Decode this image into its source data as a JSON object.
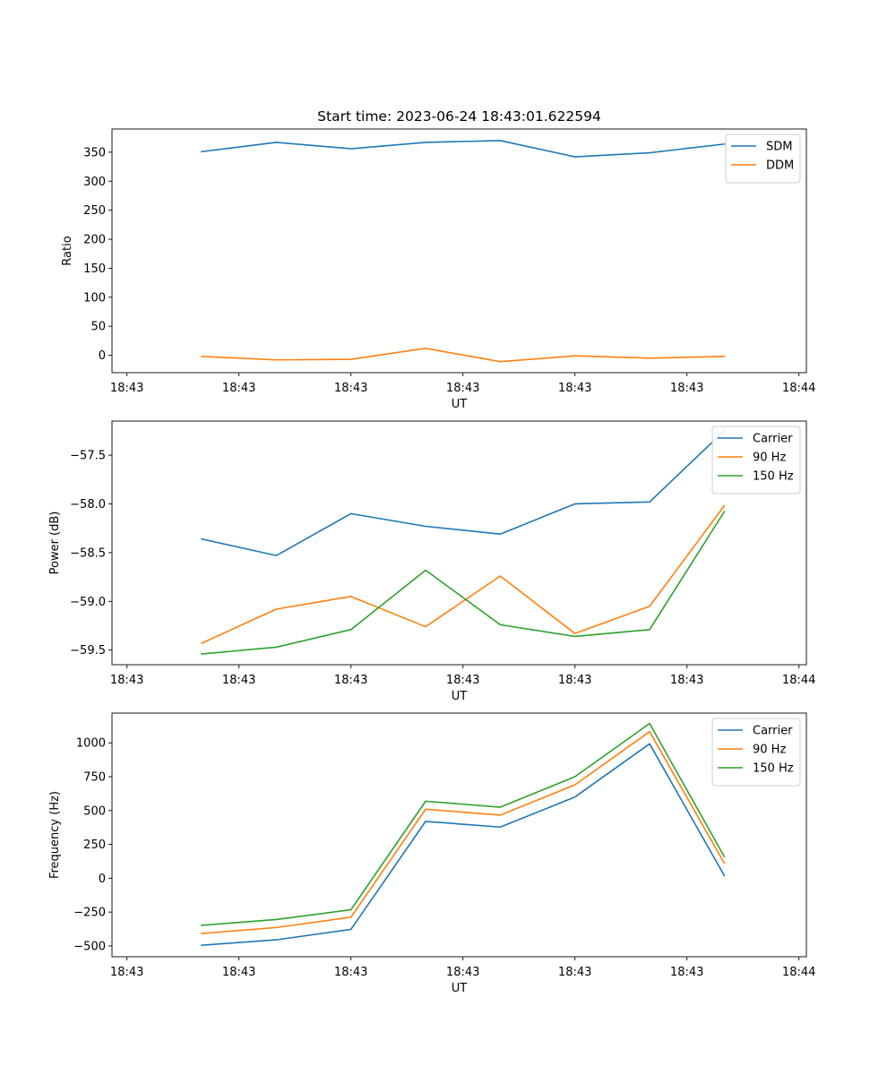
{
  "chart_data": [
    {
      "type": "line",
      "title": "Start time: 2023-06-24 18:43:01.622594",
      "xlabel": "UT",
      "ylabel": "Ratio",
      "x_tick_labels": [
        "18:43",
        "18:43",
        "18:43",
        "18:43",
        "18:43",
        "18:43",
        "18:44"
      ],
      "x": [
        1,
        2,
        3,
        4,
        5,
        6,
        7,
        8
      ],
      "xlim": [
        -0.2,
        9.1
      ],
      "ylim": [
        -30,
        390
      ],
      "yticks": [
        0,
        50,
        100,
        150,
        200,
        250,
        300,
        350
      ],
      "legend": "top-right",
      "series": [
        {
          "name": "SDM",
          "color": "#1f77b4",
          "values": [
            351,
            367,
            356,
            367,
            370,
            342,
            349,
            364
          ]
        },
        {
          "name": "DDM",
          "color": "#ff7f0e",
          "values": [
            -2,
            -8,
            -7,
            12,
            -11,
            -1,
            -5,
            -2
          ]
        }
      ]
    },
    {
      "type": "line",
      "title": "",
      "xlabel": "UT",
      "ylabel": "Power (dB)",
      "x_tick_labels": [
        "18:43",
        "18:43",
        "18:43",
        "18:43",
        "18:43",
        "18:43",
        "18:44"
      ],
      "x": [
        1,
        2,
        3,
        4,
        5,
        6,
        7,
        8
      ],
      "xlim": [
        -0.2,
        9.1
      ],
      "ylim": [
        -59.65,
        -57.15
      ],
      "yticks": [
        -59.5,
        -59.0,
        -58.5,
        -58.0,
        -57.5
      ],
      "ytick_labels": [
        "−59.5",
        "−59.0",
        "−58.5",
        "−58.0",
        "−57.5"
      ],
      "legend": "top-right",
      "series": [
        {
          "name": "Carrier",
          "color": "#1f77b4",
          "values": [
            -58.36,
            -58.53,
            -58.1,
            -58.23,
            -58.31,
            -58.0,
            -57.98,
            -57.25
          ]
        },
        {
          "name": "90 Hz",
          "color": "#ff7f0e",
          "values": [
            -59.43,
            -59.08,
            -58.95,
            -59.26,
            -58.74,
            -59.33,
            -59.05,
            -58.02
          ]
        },
        {
          "name": "150 Hz",
          "color": "#2ca02c",
          "values": [
            -59.54,
            -59.47,
            -59.29,
            -58.68,
            -59.24,
            -59.36,
            -59.29,
            -58.08
          ]
        }
      ]
    },
    {
      "type": "line",
      "title": "",
      "xlabel": "UT",
      "ylabel": "Frequency (Hz)",
      "x_tick_labels": [
        "18:43",
        "18:43",
        "18:43",
        "18:43",
        "18:43",
        "18:43",
        "18:44"
      ],
      "x": [
        1,
        2,
        3,
        4,
        5,
        6,
        7,
        8
      ],
      "xlim": [
        -0.2,
        9.1
      ],
      "ylim": [
        -580,
        1220
      ],
      "yticks": [
        -500,
        -250,
        0,
        250,
        500,
        750,
        1000
      ],
      "ytick_labels": [
        "−500",
        "−250",
        "0",
        "250",
        "500",
        "750",
        "1000"
      ],
      "legend": "top-right",
      "series": [
        {
          "name": "Carrier",
          "color": "#1f77b4",
          "values": [
            -495,
            -455,
            -378,
            420,
            378,
            600,
            993,
            20
          ]
        },
        {
          "name": "90 Hz",
          "color": "#ff7f0e",
          "values": [
            -408,
            -364,
            -288,
            510,
            466,
            690,
            1083,
            112
          ]
        },
        {
          "name": "150 Hz",
          "color": "#2ca02c",
          "values": [
            -348,
            -305,
            -233,
            569,
            525,
            750,
            1143,
            160
          ]
        }
      ]
    }
  ]
}
